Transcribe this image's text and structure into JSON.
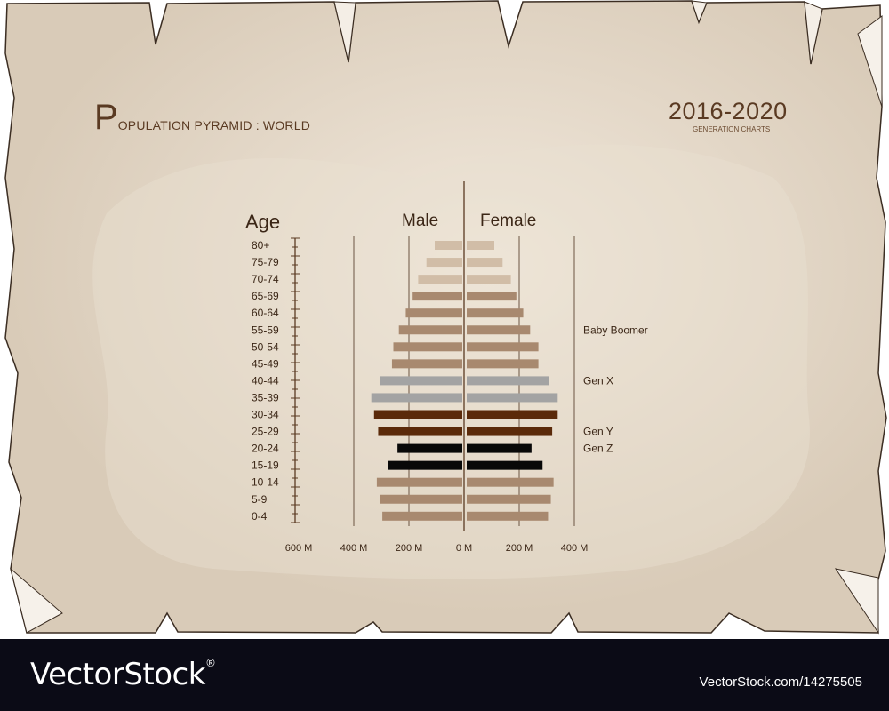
{
  "header": {
    "title_initial": "P",
    "title_rest": "OPULATION PYRAMID : WORLD",
    "years": "2016-2020",
    "subtitle": "GENERATION CHARTS"
  },
  "footer": {
    "brand": "VectorStock",
    "registered_mark": "®",
    "image_id": "VectorStock.com/14275505"
  },
  "colors": {
    "paper": "#ddd0be",
    "paper_light": "#eee5d8",
    "text_brown": "#5a3a22",
    "tan_bar": "#a8896f",
    "light_tan_bar": "#d1bda7",
    "gray_bar": "#a3a3a3",
    "dark_brown_bar": "#5b2a0a",
    "black_bar": "#080808",
    "footer_bg": "#0b0b16"
  },
  "chart_data": {
    "type": "bar",
    "orientation": "horizontal-pyramid",
    "age_axis_label": "Age",
    "categories": [
      "80+",
      "75-79",
      "70-74",
      "65-69",
      "60-64",
      "55-59",
      "50-54",
      "45-49",
      "40-44",
      "35-39",
      "30-34",
      "25-29",
      "20-24",
      "15-19",
      "10-14",
      "5-9",
      "0-4"
    ],
    "series": [
      {
        "name": "Male",
        "values": [
          100,
          130,
          160,
          180,
          205,
          230,
          250,
          255,
          300,
          330,
          320,
          305,
          235,
          270,
          310,
          300,
          290
        ]
      },
      {
        "name": "Female",
        "values": [
          100,
          130,
          160,
          180,
          205,
          230,
          260,
          260,
          300,
          330,
          330,
          310,
          235,
          275,
          315,
          305,
          295
        ]
      }
    ],
    "bar_color_keys": [
      "light_tan_bar",
      "light_tan_bar",
      "light_tan_bar",
      "tan_bar",
      "tan_bar",
      "tan_bar",
      "tan_bar",
      "tan_bar",
      "gray_bar",
      "gray_bar",
      "dark_brown_bar",
      "dark_brown_bar",
      "black_bar",
      "black_bar",
      "tan_bar",
      "tan_bar",
      "tan_bar"
    ],
    "x_ticks": [
      {
        "label": "600 M",
        "value": -600
      },
      {
        "label": "400 M",
        "value": -400
      },
      {
        "label": "200 M",
        "value": -200
      },
      {
        "label": "0 M",
        "value": 0
      },
      {
        "label": "200 M",
        "value": 200
      },
      {
        "label": "400 M",
        "value": 400
      }
    ],
    "x_range": [
      -600,
      400
    ],
    "gridlines": [
      -400,
      -200,
      200,
      400
    ],
    "generation_labels": [
      {
        "label": "Baby Boomer",
        "category": "55-59"
      },
      {
        "label": "Gen X",
        "category": "40-44"
      },
      {
        "label": "Gen Y",
        "category": "25-29"
      },
      {
        "label": "Gen Z",
        "category": "20-24"
      }
    ]
  }
}
